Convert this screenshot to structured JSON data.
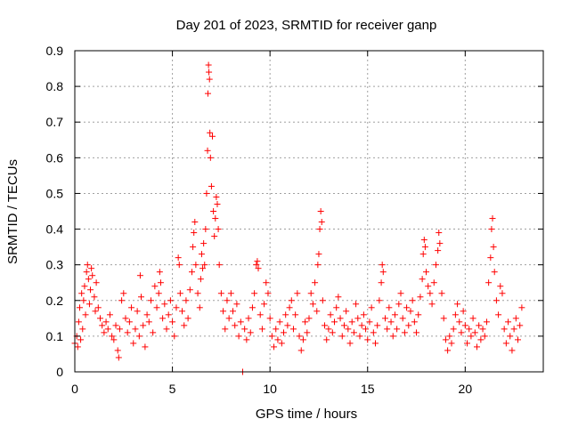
{
  "chart_data": {
    "type": "scatter",
    "title": "Day 201 of 2023, SRMTID for receiver ganp",
    "xlabel": "GPS time / hours",
    "ylabel": "SRMTID / TECUs",
    "xlim": [
      0,
      24
    ],
    "ylim": [
      0,
      0.9
    ],
    "grid": true,
    "marker": "+",
    "color": "#ff0000",
    "x_ticks": [
      0,
      5,
      10,
      15,
      20
    ],
    "x_tick_labels": [
      "0",
      "5",
      "10",
      "15",
      "20"
    ],
    "y_ticks": [
      0,
      0.1,
      0.2,
      0.3,
      0.4,
      0.5,
      0.6,
      0.7,
      0.8,
      0.9
    ],
    "y_tick_labels": [
      "0",
      "0.1",
      "0.2",
      "0.3",
      "0.4",
      "0.5",
      "0.6",
      "0.7",
      "0.8",
      "0.9"
    ],
    "series": [
      {
        "name": "SRMTID",
        "points": [
          [
            0.0,
            0.08
          ],
          [
            0.1,
            0.1
          ],
          [
            0.15,
            0.07
          ],
          [
            0.2,
            0.14
          ],
          [
            0.25,
            0.18
          ],
          [
            0.3,
            0.09
          ],
          [
            0.35,
            0.22
          ],
          [
            0.4,
            0.12
          ],
          [
            0.45,
            0.2
          ],
          [
            0.5,
            0.24
          ],
          [
            0.55,
            0.16
          ],
          [
            0.6,
            0.28
          ],
          [
            0.65,
            0.3
          ],
          [
            0.7,
            0.26
          ],
          [
            0.75,
            0.19
          ],
          [
            0.8,
            0.23
          ],
          [
            0.85,
            0.29
          ],
          [
            0.9,
            0.27
          ],
          [
            1.0,
            0.21
          ],
          [
            1.05,
            0.17
          ],
          [
            1.1,
            0.25
          ],
          [
            1.2,
            0.18
          ],
          [
            1.3,
            0.15
          ],
          [
            1.4,
            0.13
          ],
          [
            1.5,
            0.11
          ],
          [
            1.6,
            0.14
          ],
          [
            1.7,
            0.12
          ],
          [
            1.8,
            0.16
          ],
          [
            1.9,
            0.1
          ],
          [
            2.0,
            0.09
          ],
          [
            2.1,
            0.13
          ],
          [
            2.2,
            0.06
          ],
          [
            2.25,
            0.04
          ],
          [
            2.3,
            0.12
          ],
          [
            2.4,
            0.2
          ],
          [
            2.5,
            0.22
          ],
          [
            2.6,
            0.15
          ],
          [
            2.7,
            0.11
          ],
          [
            2.8,
            0.14
          ],
          [
            2.9,
            0.18
          ],
          [
            3.0,
            0.08
          ],
          [
            3.1,
            0.12
          ],
          [
            3.2,
            0.17
          ],
          [
            3.3,
            0.1
          ],
          [
            3.35,
            0.27
          ],
          [
            3.4,
            0.21
          ],
          [
            3.5,
            0.13
          ],
          [
            3.6,
            0.07
          ],
          [
            3.7,
            0.16
          ],
          [
            3.8,
            0.14
          ],
          [
            3.9,
            0.2
          ],
          [
            4.0,
            0.11
          ],
          [
            4.1,
            0.24
          ],
          [
            4.2,
            0.18
          ],
          [
            4.3,
            0.22
          ],
          [
            4.35,
            0.28
          ],
          [
            4.4,
            0.25
          ],
          [
            4.5,
            0.15
          ],
          [
            4.6,
            0.19
          ],
          [
            4.7,
            0.12
          ],
          [
            4.8,
            0.16
          ],
          [
            4.9,
            0.2
          ],
          [
            5.0,
            0.14
          ],
          [
            5.1,
            0.1
          ],
          [
            5.2,
            0.18
          ],
          [
            5.3,
            0.32
          ],
          [
            5.35,
            0.3
          ],
          [
            5.4,
            0.22
          ],
          [
            5.5,
            0.17
          ],
          [
            5.6,
            0.13
          ],
          [
            5.7,
            0.2
          ],
          [
            5.8,
            0.15
          ],
          [
            5.9,
            0.23
          ],
          [
            6.0,
            0.28
          ],
          [
            6.05,
            0.35
          ],
          [
            6.1,
            0.39
          ],
          [
            6.15,
            0.42
          ],
          [
            6.2,
            0.3
          ],
          [
            6.3,
            0.22
          ],
          [
            6.4,
            0.18
          ],
          [
            6.45,
            0.26
          ],
          [
            6.5,
            0.33
          ],
          [
            6.55,
            0.29
          ],
          [
            6.6,
            0.36
          ],
          [
            6.65,
            0.3
          ],
          [
            6.7,
            0.4
          ],
          [
            6.75,
            0.5
          ],
          [
            6.8,
            0.62
          ],
          [
            6.82,
            0.78
          ],
          [
            6.85,
            0.86
          ],
          [
            6.87,
            0.84
          ],
          [
            6.9,
            0.82
          ],
          [
            6.92,
            0.67
          ],
          [
            6.95,
            0.6
          ],
          [
            7.0,
            0.52
          ],
          [
            7.05,
            0.66
          ],
          [
            7.1,
            0.45
          ],
          [
            7.15,
            0.38
          ],
          [
            7.2,
            0.43
          ],
          [
            7.25,
            0.49
          ],
          [
            7.3,
            0.47
          ],
          [
            7.35,
            0.4
          ],
          [
            7.4,
            0.3
          ],
          [
            7.5,
            0.22
          ],
          [
            7.6,
            0.17
          ],
          [
            7.7,
            0.12
          ],
          [
            7.8,
            0.2
          ],
          [
            7.9,
            0.15
          ],
          [
            8.0,
            0.22
          ],
          [
            8.1,
            0.17
          ],
          [
            8.2,
            0.13
          ],
          [
            8.3,
            0.19
          ],
          [
            8.4,
            0.1
          ],
          [
            8.5,
            0.14
          ],
          [
            8.6,
            0.0
          ],
          [
            8.7,
            0.12
          ],
          [
            8.8,
            0.09
          ],
          [
            8.9,
            0.15
          ],
          [
            9.0,
            0.11
          ],
          [
            9.1,
            0.18
          ],
          [
            9.2,
            0.22
          ],
          [
            9.3,
            0.3
          ],
          [
            9.35,
            0.31
          ],
          [
            9.4,
            0.29
          ],
          [
            9.5,
            0.16
          ],
          [
            9.6,
            0.12
          ],
          [
            9.7,
            0.19
          ],
          [
            9.8,
            0.25
          ],
          [
            9.9,
            0.22
          ],
          [
            10.0,
            0.15
          ],
          [
            10.1,
            0.1
          ],
          [
            10.2,
            0.07
          ],
          [
            10.3,
            0.12
          ],
          [
            10.4,
            0.09
          ],
          [
            10.5,
            0.14
          ],
          [
            10.6,
            0.08
          ],
          [
            10.7,
            0.11
          ],
          [
            10.8,
            0.16
          ],
          [
            10.9,
            0.13
          ],
          [
            11.0,
            0.18
          ],
          [
            11.1,
            0.2
          ],
          [
            11.2,
            0.12
          ],
          [
            11.3,
            0.16
          ],
          [
            11.4,
            0.22
          ],
          [
            11.5,
            0.1
          ],
          [
            11.6,
            0.06
          ],
          [
            11.7,
            0.09
          ],
          [
            11.8,
            0.14
          ],
          [
            11.9,
            0.11
          ],
          [
            12.0,
            0.15
          ],
          [
            12.1,
            0.22
          ],
          [
            12.2,
            0.19
          ],
          [
            12.3,
            0.25
          ],
          [
            12.4,
            0.17
          ],
          [
            12.45,
            0.3
          ],
          [
            12.5,
            0.33
          ],
          [
            12.55,
            0.4
          ],
          [
            12.6,
            0.45
          ],
          [
            12.65,
            0.42
          ],
          [
            12.7,
            0.2
          ],
          [
            12.8,
            0.13
          ],
          [
            12.9,
            0.09
          ],
          [
            13.0,
            0.12
          ],
          [
            13.1,
            0.16
          ],
          [
            13.2,
            0.11
          ],
          [
            13.3,
            0.14
          ],
          [
            13.4,
            0.18
          ],
          [
            13.5,
            0.21
          ],
          [
            13.6,
            0.15
          ],
          [
            13.7,
            0.1
          ],
          [
            13.8,
            0.13
          ],
          [
            13.9,
            0.17
          ],
          [
            14.0,
            0.12
          ],
          [
            14.1,
            0.08
          ],
          [
            14.2,
            0.14
          ],
          [
            14.3,
            0.11
          ],
          [
            14.4,
            0.19
          ],
          [
            14.5,
            0.15
          ],
          [
            14.6,
            0.1
          ],
          [
            14.7,
            0.13
          ],
          [
            14.8,
            0.16
          ],
          [
            14.9,
            0.12
          ],
          [
            15.0,
            0.09
          ],
          [
            15.1,
            0.14
          ],
          [
            15.2,
            0.18
          ],
          [
            15.3,
            0.11
          ],
          [
            15.4,
            0.08
          ],
          [
            15.5,
            0.13
          ],
          [
            15.6,
            0.2
          ],
          [
            15.7,
            0.25
          ],
          [
            15.75,
            0.3
          ],
          [
            15.8,
            0.28
          ],
          [
            15.9,
            0.15
          ],
          [
            16.0,
            0.12
          ],
          [
            16.1,
            0.18
          ],
          [
            16.2,
            0.14
          ],
          [
            16.3,
            0.1
          ],
          [
            16.4,
            0.16
          ],
          [
            16.5,
            0.12
          ],
          [
            16.6,
            0.19
          ],
          [
            16.7,
            0.22
          ],
          [
            16.8,
            0.15
          ],
          [
            16.9,
            0.11
          ],
          [
            17.0,
            0.18
          ],
          [
            17.1,
            0.13
          ],
          [
            17.2,
            0.17
          ],
          [
            17.3,
            0.2
          ],
          [
            17.4,
            0.14
          ],
          [
            17.5,
            0.11
          ],
          [
            17.6,
            0.16
          ],
          [
            17.7,
            0.21
          ],
          [
            17.8,
            0.26
          ],
          [
            17.85,
            0.33
          ],
          [
            17.9,
            0.37
          ],
          [
            17.95,
            0.35
          ],
          [
            18.0,
            0.28
          ],
          [
            18.1,
            0.24
          ],
          [
            18.2,
            0.22
          ],
          [
            18.3,
            0.19
          ],
          [
            18.4,
            0.25
          ],
          [
            18.5,
            0.3
          ],
          [
            18.6,
            0.34
          ],
          [
            18.65,
            0.39
          ],
          [
            18.7,
            0.36
          ],
          [
            18.8,
            0.22
          ],
          [
            18.9,
            0.15
          ],
          [
            19.0,
            0.09
          ],
          [
            19.1,
            0.06
          ],
          [
            19.2,
            0.1
          ],
          [
            19.3,
            0.08
          ],
          [
            19.4,
            0.12
          ],
          [
            19.5,
            0.16
          ],
          [
            19.6,
            0.19
          ],
          [
            19.7,
            0.14
          ],
          [
            19.8,
            0.11
          ],
          [
            19.9,
            0.17
          ],
          [
            20.0,
            0.13
          ],
          [
            20.1,
            0.08
          ],
          [
            20.2,
            0.12
          ],
          [
            20.3,
            0.1
          ],
          [
            20.4,
            0.15
          ],
          [
            20.5,
            0.11
          ],
          [
            20.6,
            0.07
          ],
          [
            20.7,
            0.13
          ],
          [
            20.8,
            0.09
          ],
          [
            20.9,
            0.12
          ],
          [
            21.0,
            0.1
          ],
          [
            21.1,
            0.14
          ],
          [
            21.2,
            0.25
          ],
          [
            21.3,
            0.32
          ],
          [
            21.35,
            0.4
          ],
          [
            21.4,
            0.43
          ],
          [
            21.45,
            0.35
          ],
          [
            21.5,
            0.28
          ],
          [
            21.6,
            0.2
          ],
          [
            21.7,
            0.16
          ],
          [
            21.8,
            0.24
          ],
          [
            21.9,
            0.22
          ],
          [
            22.0,
            0.12
          ],
          [
            22.1,
            0.08
          ],
          [
            22.2,
            0.14
          ],
          [
            22.3,
            0.1
          ],
          [
            22.4,
            0.06
          ],
          [
            22.5,
            0.12
          ],
          [
            22.6,
            0.15
          ],
          [
            22.7,
            0.09
          ],
          [
            22.8,
            0.13
          ],
          [
            22.9,
            0.18
          ]
        ]
      }
    ]
  }
}
